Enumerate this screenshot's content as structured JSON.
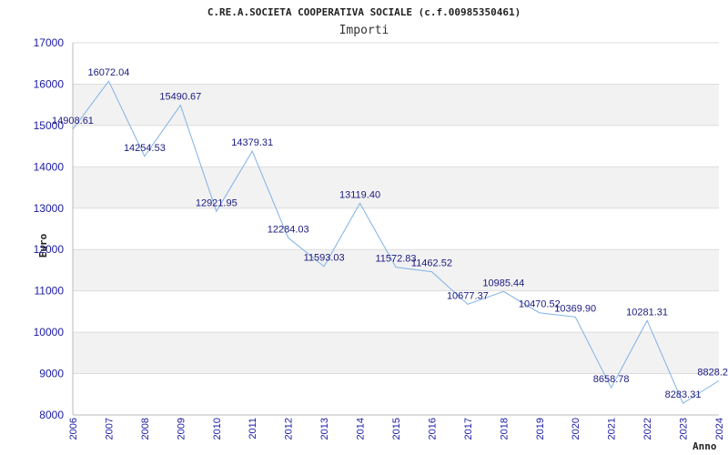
{
  "chart_data": {
    "type": "line",
    "title": "C.RE.A.SOCIETA COOPERATIVA SOCIALE (c.f.00985350461)",
    "subtitle": "Importi",
    "xlabel": "Anno",
    "ylabel": "Euro",
    "x": [
      2006,
      2007,
      2008,
      2009,
      2010,
      2011,
      2012,
      2013,
      2014,
      2015,
      2016,
      2017,
      2018,
      2019,
      2020,
      2021,
      2022,
      2023,
      2024
    ],
    "values": [
      14908.61,
      16072.04,
      14254.53,
      15490.67,
      12921.95,
      14379.31,
      12284.03,
      11593.03,
      13119.4,
      11572.83,
      11462.52,
      10677.37,
      10985.44,
      10470.52,
      10369.9,
      8658.78,
      10281.31,
      8283.31,
      8828.2
    ],
    "data_labels": [
      "14908.61",
      "16072.04",
      "14254.53",
      "15490.67",
      "12921.95",
      "14379.31",
      "12284.03",
      "11593.03",
      "13119.40",
      "11572.83",
      "11462.52",
      "10677.37",
      "10985.44",
      "10470.52",
      "10369.90",
      "8658.78",
      "10281.31",
      "8283.31",
      "8828.2"
    ],
    "yticks": [
      8000,
      9000,
      10000,
      11000,
      12000,
      13000,
      14000,
      15000,
      16000,
      17000
    ],
    "ylim": [
      8000,
      17000
    ],
    "xlim": [
      2006,
      2024
    ],
    "grid": true,
    "line_color": "#7fb2e5",
    "band_color": "#f2f2f2"
  }
}
